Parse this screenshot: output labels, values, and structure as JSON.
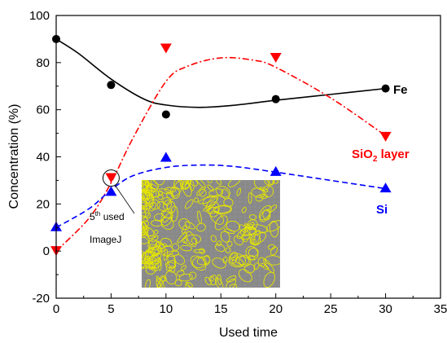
{
  "chart_data": {
    "type": "scatter",
    "xlabel": "Used time",
    "ylabel": "Concentration (%)",
    "xlim": [
      0,
      35
    ],
    "ylim": [
      -20,
      100
    ],
    "xticks": [
      "0",
      "5",
      "10",
      "15",
      "20",
      "25",
      "30",
      "35"
    ],
    "yticks": [
      "-20",
      "0",
      "20",
      "40",
      "60",
      "80",
      "100"
    ],
    "grid": false,
    "series": [
      {
        "name": "Fe",
        "marker": "circle",
        "color": "#000000",
        "line_style": "solid",
        "x": [
          0,
          5,
          10,
          20,
          30
        ],
        "y": [
          90,
          70.5,
          58,
          64.5,
          69
        ],
        "fit": [
          [
            0,
            90
          ],
          [
            2,
            84
          ],
          [
            5,
            73
          ],
          [
            8,
            64.5
          ],
          [
            10,
            62
          ],
          [
            13,
            61
          ],
          [
            16,
            61.8
          ],
          [
            20,
            64
          ],
          [
            25,
            66.5
          ],
          [
            30,
            69
          ]
        ]
      },
      {
        "name": "SiO",
        "name_sub": "2",
        "name_suffix": " layer",
        "marker": "triangle-down",
        "color": "#ff0000",
        "line_style": "dashdot",
        "x": [
          0,
          5,
          10,
          20,
          30
        ],
        "y": [
          0,
          31,
          86,
          82,
          48.5
        ],
        "fit": [
          [
            0,
            0
          ],
          [
            3,
            14
          ],
          [
            5,
            29
          ],
          [
            7,
            48
          ],
          [
            10,
            72
          ],
          [
            12,
            78.5
          ],
          [
            15,
            82
          ],
          [
            18,
            81
          ],
          [
            20,
            78
          ],
          [
            25,
            65
          ],
          [
            30,
            49
          ]
        ]
      },
      {
        "name": "Si",
        "marker": "triangle-up",
        "color": "#0000ff",
        "line_style": "dashed",
        "x": [
          0,
          5,
          10,
          20,
          30
        ],
        "y": [
          10.5,
          25.5,
          40,
          34,
          27
        ],
        "fit": [
          [
            0,
            10
          ],
          [
            3,
            18
          ],
          [
            5,
            26
          ],
          [
            7,
            32
          ],
          [
            10,
            35.5
          ],
          [
            13,
            36.5
          ],
          [
            16,
            36
          ],
          [
            20,
            33.5
          ],
          [
            25,
            30
          ],
          [
            30,
            26.5
          ]
        ]
      }
    ],
    "annotations": {
      "callout_superscript_base": "5",
      "callout_superscript": "th",
      "callout_word": " used",
      "callout_line2": "ImageJ",
      "circled_point": {
        "x": 5,
        "y": 31
      },
      "inset_image": "ImageJ-processed micrograph (gray background with yellow particle outlines)"
    }
  }
}
